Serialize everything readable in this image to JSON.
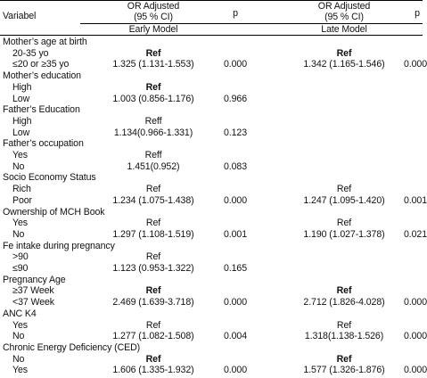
{
  "header": {
    "variable_label": "Variabel",
    "or_adjusted_1": "OR Adjusted",
    "ci_1": "(95 % CI)",
    "p_1": "p",
    "or_adjusted_2": "OR Adjusted",
    "ci_2": "(95 % CI)",
    "p_2": "p",
    "early_model": "Early Model",
    "late_model": "Late Model"
  },
  "rows": [
    {
      "label": "Mother’s age at birth",
      "kind": "group"
    },
    {
      "label": "20-35 yo",
      "kind": "sub",
      "early": "Ref",
      "early_bold": true,
      "p1": "",
      "late": "Ref",
      "late_bold": true,
      "p2": ""
    },
    {
      "label": "≤20 or ≥35 yo",
      "kind": "sub",
      "early": "1.325 (1.131-1.553)",
      "p1": "0.000",
      "late": "1.342 (1.165-1.546)",
      "p2": "0.000"
    },
    {
      "label": "Mother’s education",
      "kind": "group"
    },
    {
      "label": "High",
      "kind": "sub",
      "early": "Ref",
      "early_bold": true,
      "p1": "",
      "late": "",
      "p2": ""
    },
    {
      "label": "Low",
      "kind": "sub",
      "early": "1.003 (0.856-1.176)",
      "p1": "0.966",
      "late": "",
      "p2": ""
    },
    {
      "label": "Father’s Education",
      "kind": "group"
    },
    {
      "label": "High",
      "kind": "sub",
      "early": "Reff",
      "p1": "",
      "late": "",
      "p2": ""
    },
    {
      "label": "Low",
      "kind": "sub",
      "early": "1.134(0.966-1.331)",
      "p1": "0.123",
      "late": "",
      "p2": ""
    },
    {
      "label": "Father’s occupation",
      "kind": "group"
    },
    {
      "label": "Yes",
      "kind": "sub",
      "early": "Reff",
      "p1": "",
      "late": "",
      "p2": ""
    },
    {
      "label": "No",
      "kind": "sub",
      "early": "1.451(0.952)",
      "p1": "0.083",
      "late": "",
      "p2": ""
    },
    {
      "label": "Socio Economy Status",
      "kind": "group"
    },
    {
      "label": "Rich",
      "kind": "sub",
      "early": "Ref",
      "p1": "",
      "late": "Ref",
      "p2": ""
    },
    {
      "label": "Poor",
      "kind": "sub",
      "early": "1.234 (1.075-1.438)",
      "p1": "0.000",
      "late": "1.247 (1.095-1.420)",
      "p2": "0.001"
    },
    {
      "label": "Ownership of MCH Book",
      "kind": "group"
    },
    {
      "label": "Yes",
      "kind": "sub",
      "early": "Ref",
      "p1": "",
      "late": "Ref",
      "p2": ""
    },
    {
      "label": "No",
      "kind": "sub",
      "early": "1.297 (1.108-1.519)",
      "p1": "0.001",
      "late": "1.190 (1.027-1.378)",
      "p2": "0.021"
    },
    {
      "label": "Fe intake during pregnancy",
      "kind": "group"
    },
    {
      "label": ">90",
      "kind": "sub",
      "early": "Ref",
      "p1": "",
      "late": "",
      "p2": ""
    },
    {
      "label": "≤90",
      "kind": "sub",
      "early": "1.123 (0.953-1.322)",
      "p1": "0.165",
      "late": "",
      "p2": ""
    },
    {
      "label": "Pregnancy Age",
      "kind": "group"
    },
    {
      "label": "≥37 Week",
      "kind": "sub",
      "early": "Ref",
      "early_bold": true,
      "p1": "",
      "late": "Ref",
      "late_bold": true,
      "p2": ""
    },
    {
      "label": "<37 Week",
      "kind": "sub",
      "early": "2.469 (1.639-3.718)",
      "p1": "0.000",
      "late": "2.712 (1.826-4.028)",
      "p2": "0.000"
    },
    {
      "label": "ANC K4",
      "kind": "group"
    },
    {
      "label": "Yes",
      "kind": "sub",
      "early": "Ref",
      "p1": "",
      "late": "Ref",
      "p2": ""
    },
    {
      "label": "No",
      "kind": "sub",
      "early": "1.277 (1.082-1.508)",
      "p1": "0.004",
      "late": "1.318(1.138-1.526)",
      "p2": "0.000"
    },
    {
      "label": "Chronic Energy Deficiency (CED)",
      "kind": "group"
    },
    {
      "label": "No",
      "kind": "sub",
      "early": "Ref",
      "early_bold": true,
      "p1": "",
      "late": "Ref",
      "late_bold": true,
      "p2": ""
    },
    {
      "label": "Yes",
      "kind": "sub",
      "early": "1.606 (1.335-1.932)",
      "p1": "0.000",
      "late": "1.577 (1.326-1.876)",
      "p2": "0.000"
    }
  ]
}
